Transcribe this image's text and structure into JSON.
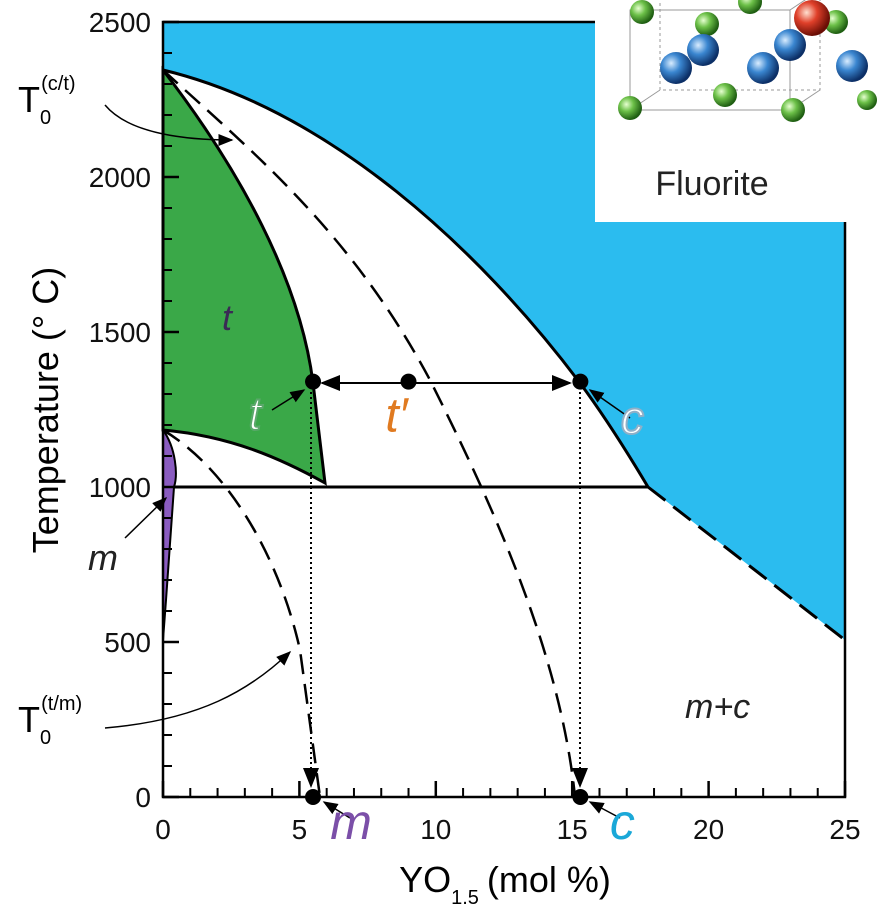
{
  "chart_data": {
    "type": "phase-diagram",
    "x_label": {
      "main": "YO",
      "sub": "1.5",
      "unit": "(mol %)"
    },
    "y_label": "Temperature (° C)",
    "xlim": [
      0,
      25
    ],
    "xticks": [
      0,
      5,
      10,
      15,
      20,
      25
    ],
    "ylim": [
      0,
      2500
    ],
    "yticks": [
      0,
      500,
      1000,
      1500,
      2000,
      2500
    ],
    "annotations": [
      {
        "main": "T",
        "sub": "0",
        "sup": "(c/t)"
      },
      {
        "main": "T",
        "sub": "0",
        "sup": "(t/m)"
      }
    ],
    "regions": [
      "t",
      "m",
      "m+c"
    ],
    "points": {
      "x": [
        5.5,
        9,
        15.3,
        5.5,
        15.3
      ],
      "y": [
        1340,
        1340,
        1340,
        0,
        0
      ],
      "labels": [
        "t",
        "t′",
        "c",
        "m",
        "c"
      ],
      "label_colors": [
        "#5aa86a",
        "#e07a20",
        "#8fb0c8",
        "#7b4fa8",
        "#1aa8d8"
      ]
    },
    "inset_title": "Fluorite"
  }
}
